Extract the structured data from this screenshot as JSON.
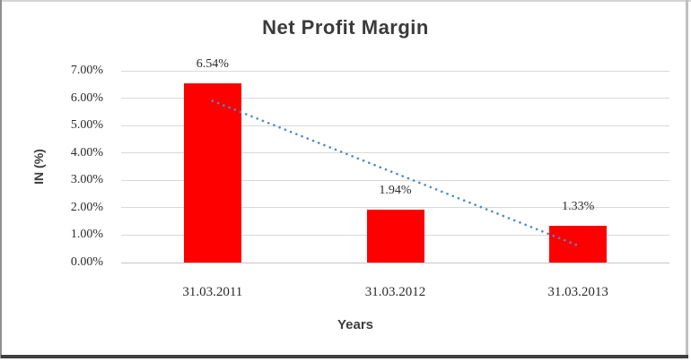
{
  "chart_data": {
    "type": "bar",
    "title": "Net Profit Margin",
    "xlabel": "Years",
    "ylabel": "IN (%)",
    "categories": [
      "31.03.2011",
      "31.03.2012",
      "31.03.2013"
    ],
    "values": [
      6.54,
      1.94,
      1.33
    ],
    "data_labels": [
      "6.54%",
      "1.94%",
      "1.33%"
    ],
    "ylim": [
      0,
      7
    ],
    "ytick_step": 1,
    "ytick_labels": [
      "0.00%",
      "1.00%",
      "2.00%",
      "3.00%",
      "4.00%",
      "5.00%",
      "6.00%",
      "7.00%"
    ],
    "grid": true,
    "legend": "none",
    "bar_color": "#fe0000",
    "trendline": {
      "type": "linear",
      "style": "dotted",
      "color": "#4e8bc8",
      "start_value": 5.9,
      "end_value": 0.62
    },
    "colors": {
      "title": "#3b3b3b",
      "axis_title": "#3d3d3d",
      "tick_label": "#2b2b2b",
      "gridline": "#d9d9d9",
      "axis_line": "#c6c6c6"
    }
  }
}
